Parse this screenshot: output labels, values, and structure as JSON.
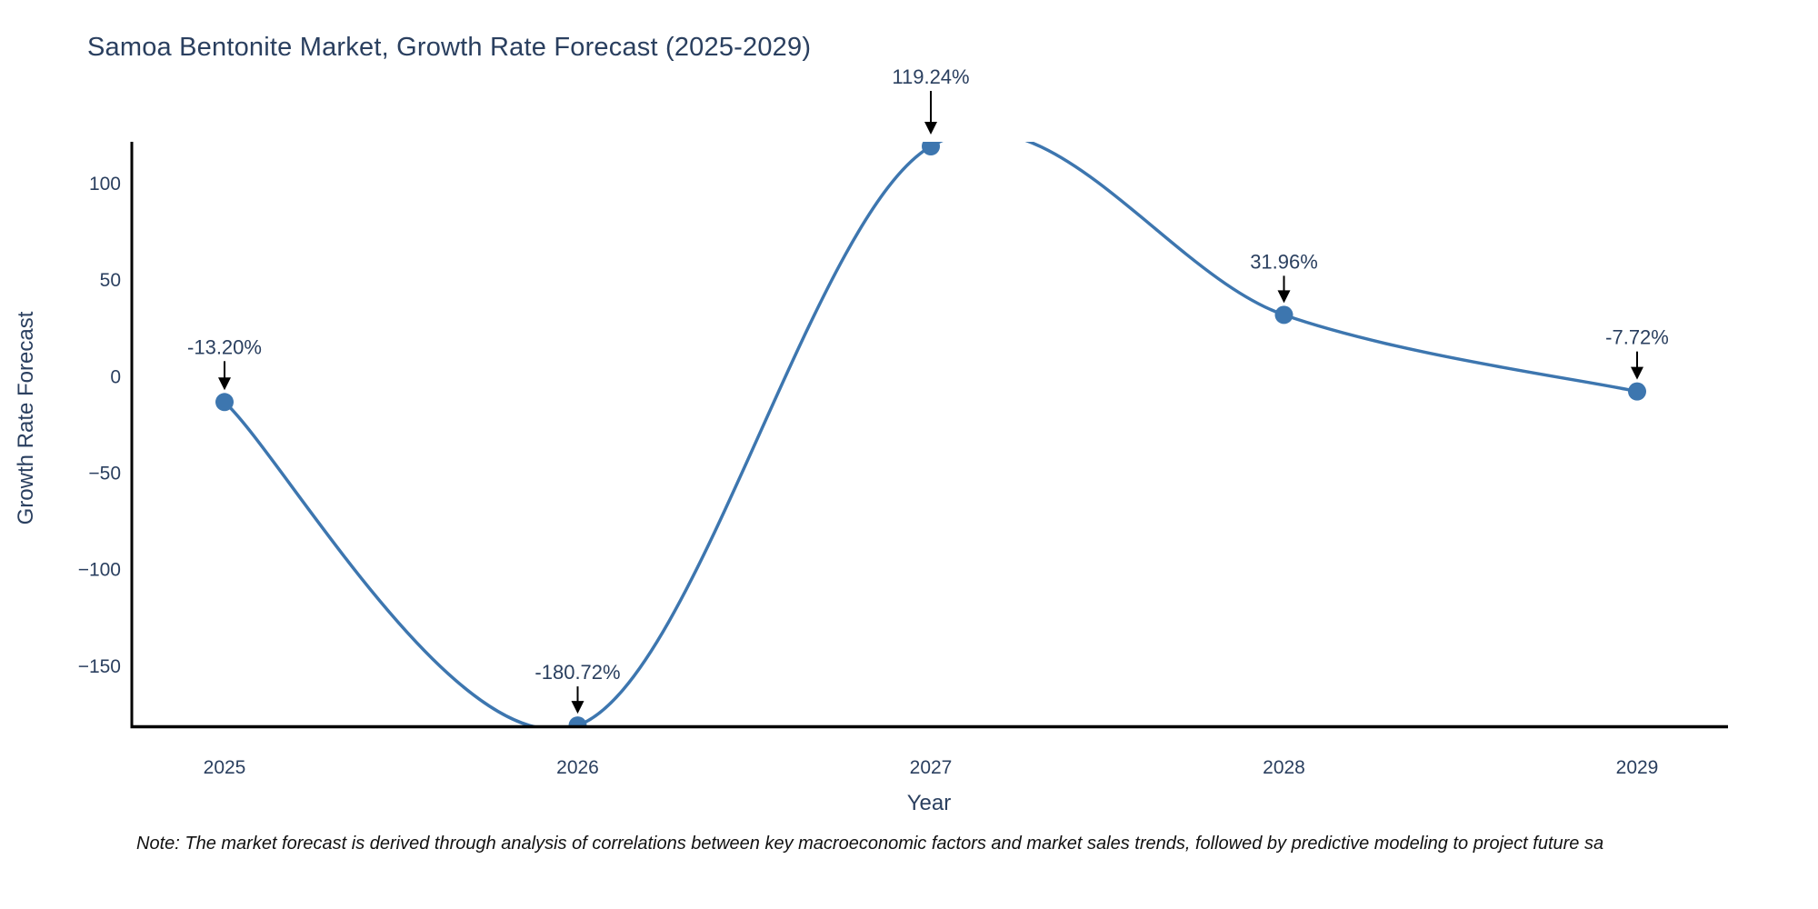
{
  "page": {
    "background": "#ffffff"
  },
  "header": {
    "title": "Samoa Bentonite Market, Growth Rate Forecast (2025-2029)"
  },
  "chart_data": {
    "type": "line",
    "title": "Samoa Bentonite Market, Growth Rate Forecast (2025-2029)",
    "xlabel": "Year",
    "ylabel": "Growth Rate Forecast",
    "x": [
      2025,
      2026,
      2027,
      2028,
      2029
    ],
    "x_tick_labels": [
      "2025",
      "2026",
      "2027",
      "2028",
      "2029"
    ],
    "values": [
      -13.2,
      -180.72,
      119.24,
      31.96,
      -7.72
    ],
    "point_labels": [
      "-13.20%",
      "-180.72%",
      "119.24%",
      "31.96%",
      "-7.72%"
    ],
    "y_ticks": [
      100,
      50,
      0,
      -50,
      -100,
      -150
    ],
    "y_tick_labels": [
      "100",
      "50",
      "0",
      "−50",
      "−100",
      "−150"
    ],
    "ylim": [
      -180.9,
      121.6
    ],
    "line_shape": "spline",
    "grid": false,
    "legend_position": "none",
    "colors": {
      "line": "#3d76af",
      "marker": "#3d76af",
      "axis": "#000000",
      "tick_text": "#2a3f5f",
      "annotation_text": "#2a3f5f",
      "annotation_arrow": "#000000",
      "title_text": "#2a3f5f",
      "note_text": "#111111"
    }
  },
  "note": {
    "text": "Note: The market forecast is derived through analysis of correlations between key macroeconomic factors and market sales trends, followed by predictive modeling to project future sa"
  }
}
